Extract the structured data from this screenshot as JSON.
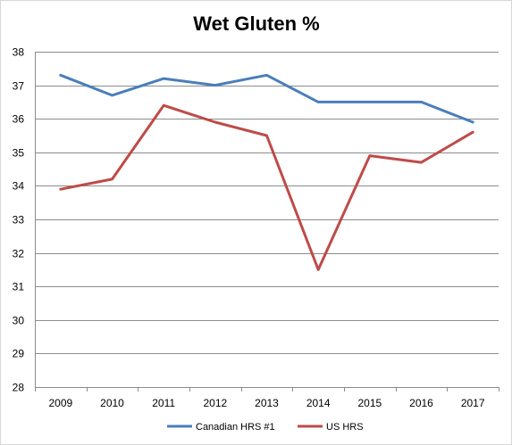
{
  "chart_data": {
    "type": "line",
    "title": "Wet Gluten %",
    "xlabel": "",
    "ylabel": "",
    "categories": [
      "2009",
      "2010",
      "2011",
      "2012",
      "2013",
      "2014",
      "2015",
      "2016",
      "2017"
    ],
    "ylim": [
      28,
      38
    ],
    "yticks": [
      28,
      29,
      30,
      31,
      32,
      33,
      34,
      35,
      36,
      37,
      38
    ],
    "grid": "horizontal",
    "legend_position": "bottom",
    "series": [
      {
        "name": "Canadian HRS #1",
        "color": "#4a7ebb",
        "values": [
          37.3,
          36.7,
          37.2,
          37.0,
          37.3,
          36.5,
          36.5,
          36.5,
          35.9
        ]
      },
      {
        "name": "US HRS",
        "color": "#be4b48",
        "values": [
          33.9,
          34.2,
          36.4,
          35.9,
          35.5,
          31.5,
          34.9,
          34.7,
          35.6
        ]
      }
    ]
  }
}
